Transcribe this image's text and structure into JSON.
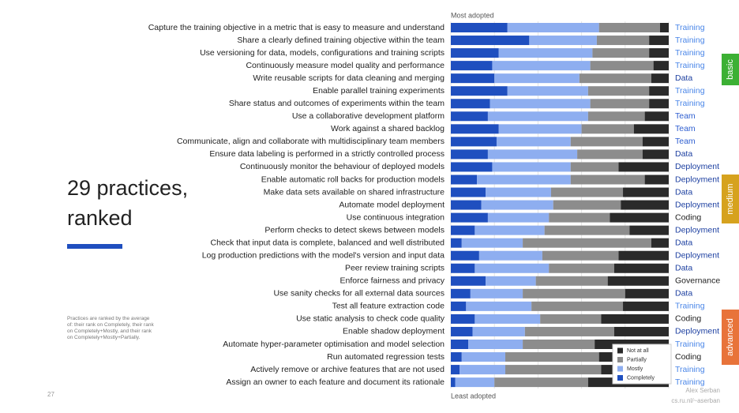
{
  "chart_data": {
    "type": "stacked-bar-h",
    "title_lines": [
      "29 practices,",
      "ranked"
    ],
    "footnote": "Practices are ranked by the average of: their rank on Completely, their rank on Completely+Mostly, and their rank on Completely+Mostly+Partially.",
    "top_label": "Most adopted",
    "bottom_label": "Least adopted",
    "categories": [
      "Capture the training objective in a metric that is easy to measure and understand",
      "Share a clearly defined training objective within the team",
      "Use versioning for data, models, configurations and training scripts",
      "Continuously measure model quality and performance",
      "Write reusable scripts for data cleaning and merging",
      "Enable parallel training experiments",
      "Share status and outcomes of experiments within the team",
      "Use a collaborative development platform",
      "Work against a shared backlog",
      "Communicate, align and collaborate with multidisciplinary team members",
      "Ensure data labeling is performed in a strictly controlled process",
      "Continuously monitor the behaviour of deployed models",
      "Enable automatic roll backs for production models",
      "Make data sets available on shared infrastructure",
      "Automate model deployment",
      "Use continuous integration",
      "Perform checks to detect skews between models",
      "Check that input data is complete, balanced and well distributed",
      "Log production predictions with the model's version and input data",
      "Peer review training scripts",
      "Enforce fairness and privacy",
      "Use sanity checks for all external data sources",
      "Test all feature extraction code",
      "Use static analysis to check code quality",
      "Enable shadow deployment",
      "Automate hyper-parameter optimisation and model selection",
      "Run automated regression tests",
      "Actively remove or archive features that are not used",
      "Assign an owner to each feature and document its rationale"
    ],
    "groups": [
      "Training",
      "Training",
      "Training",
      "Training",
      "Data",
      "Training",
      "Training",
      "Team",
      "Team",
      "Team",
      "Data",
      "Deployment",
      "Deployment",
      "Data",
      "Deployment",
      "Coding",
      "Deployment",
      "Data",
      "Deployment",
      "Data",
      "Governance",
      "Data",
      "Training",
      "Coding",
      "Deployment",
      "Training",
      "Coding",
      "Training",
      "Training"
    ],
    "group_colors": [
      "#4a86e8",
      "#4a86e8",
      "#4a86e8",
      "#4a86e8",
      "#1c3fa0",
      "#4a86e8",
      "#4a86e8",
      "#2f5fd0",
      "#2f5fd0",
      "#2f5fd0",
      "#1c3fa0",
      "#1c3fa0",
      "#1c3fa0",
      "#1c3fa0",
      "#1c3fa0",
      "#222222",
      "#1c3fa0",
      "#1c3fa0",
      "#1c3fa0",
      "#1c3fa0",
      "#222222",
      "#1c3fa0",
      "#4a86e8",
      "#222222",
      "#1c3fa0",
      "#4a86e8",
      "#222222",
      "#4a86e8",
      "#4a86e8"
    ],
    "series": [
      {
        "name": "Completely",
        "color": "#1f4fbf",
        "values": [
          26,
          36,
          22,
          19,
          20,
          26,
          18,
          17,
          22,
          21,
          17,
          19,
          12,
          16,
          14,
          17,
          11,
          5,
          13,
          11,
          16,
          9,
          7,
          11,
          10,
          8,
          5,
          4,
          2
        ]
      },
      {
        "name": "Mostly",
        "color": "#8eaef0",
        "values": [
          42,
          31,
          43,
          45,
          39,
          37,
          46,
          46,
          38,
          34,
          41,
          36,
          43,
          30,
          33,
          28,
          32,
          28,
          29,
          34,
          23,
          24,
          30,
          30,
          24,
          25,
          20,
          21,
          18
        ]
      },
      {
        "name": "Partially",
        "color": "#8c8c8c",
        "values": [
          28,
          24,
          26,
          29,
          33,
          28,
          27,
          26,
          24,
          33,
          30,
          22,
          34,
          33,
          31,
          28,
          39,
          59,
          35,
          30,
          33,
          47,
          42,
          28,
          41,
          33,
          43,
          44,
          43
        ]
      },
      {
        "name": "Not at all",
        "color": "#2a2a2a",
        "values": [
          4,
          9,
          9,
          7,
          8,
          9,
          9,
          11,
          16,
          12,
          12,
          23,
          11,
          21,
          22,
          27,
          18,
          8,
          23,
          25,
          28,
          20,
          21,
          31,
          25,
          34,
          32,
          31,
          37
        ]
      }
    ],
    "xlim": [
      0,
      100
    ],
    "xticks": [
      0,
      20,
      40,
      60,
      80,
      100
    ],
    "grid": true,
    "legend": "lower right",
    "badges": [
      {
        "label": "basic",
        "color": "#3cb034"
      },
      {
        "label": "medium",
        "color": "#d6a21e"
      },
      {
        "label": "advanced",
        "color": "#e8733a"
      }
    ],
    "page_number": "27",
    "author": "Alex Serban",
    "author_url": "cs.ru.nl/~aserban"
  }
}
